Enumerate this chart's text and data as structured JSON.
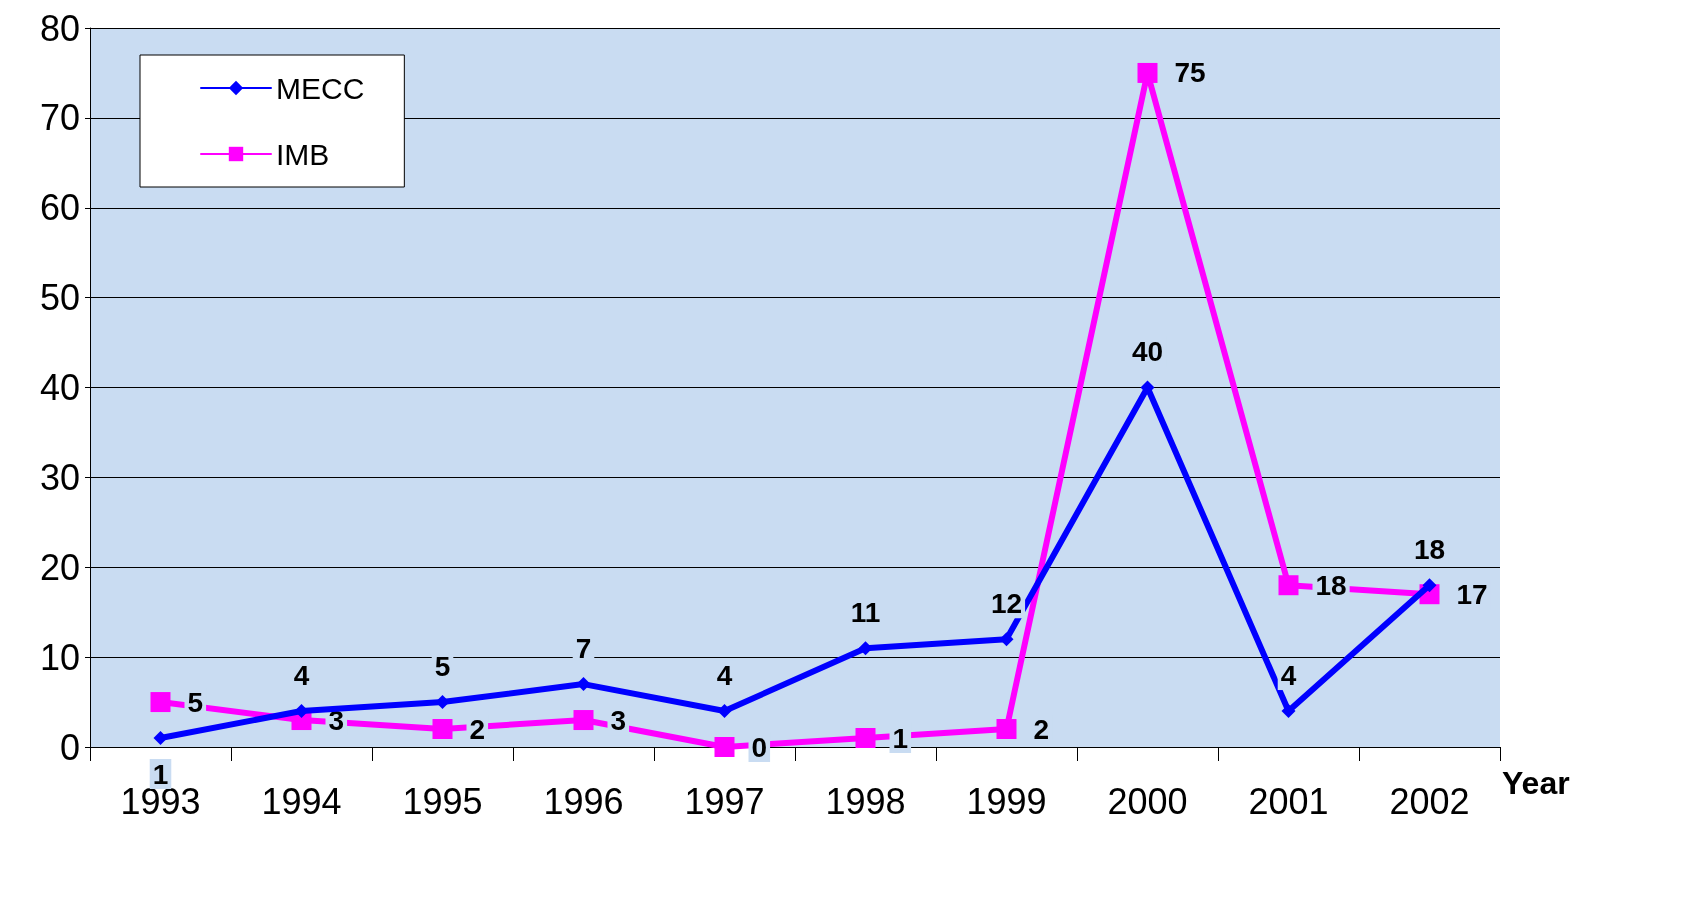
{
  "chart_data": {
    "type": "line",
    "xlabel": "Year",
    "categories": [
      "1993",
      "1994",
      "1995",
      "1996",
      "1997",
      "1998",
      "1999",
      "2000",
      "2001",
      "2002"
    ],
    "series": [
      {
        "name": "MECC",
        "color": "#0000ff",
        "marker": "diamond",
        "values": [
          1,
          4,
          5,
          7,
          4,
          11,
          12,
          40,
          4,
          18
        ]
      },
      {
        "name": "IMB",
        "color": "#ff00ff",
        "marker": "square",
        "values": [
          5,
          3,
          2,
          3,
          0,
          1,
          2,
          75,
          18,
          17
        ]
      }
    ],
    "ylim": [
      0,
      80
    ],
    "yticks": [
      0,
      10,
      20,
      30,
      40,
      50,
      60,
      70,
      80
    ],
    "grid": "y",
    "legend": "top left",
    "data_labels": true,
    "line_style": "solid"
  }
}
